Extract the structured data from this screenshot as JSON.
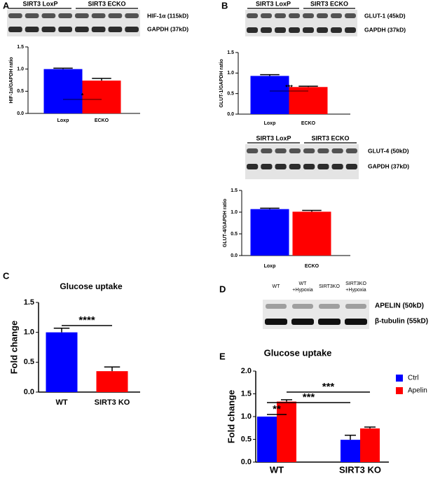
{
  "chart_data": [
    {
      "type": "bar",
      "panel": "A",
      "ylabel": "HIF-1α/GAPDH ratio",
      "categories": [
        "Loxp",
        "ECKO"
      ],
      "values": [
        1.0,
        0.74
      ],
      "errors": [
        0.02,
        0.05
      ],
      "colors": [
        "#0000ff",
        "#ff0000"
      ],
      "ylim": [
        0,
        1.5
      ],
      "yticks": [
        {
          "value": 0,
          "label": "0.0"
        },
        0.5,
        {
          "value": 1,
          "label": "1.0"
        },
        1.5
      ],
      "annotations": [
        "*"
      ],
      "blot": {
        "groups": [
          "SIRT3 LoxP",
          "SIRT3 ECKO"
        ],
        "bands": [
          "HIF-1α (115kD)",
          "GAPDH (37kD)"
        ]
      }
    },
    {
      "type": "bar",
      "panel": "B",
      "ylabel": "GLUT-1/GAPDH ratio",
      "categories": [
        "Loxp",
        "ECKO"
      ],
      "values": [
        0.93,
        0.66
      ],
      "errors": [
        0.03,
        0.02
      ],
      "colors": [
        "#0000ff",
        "#ff0000"
      ],
      "ylim": [
        0,
        1.5
      ],
      "yticks": [
        {
          "value": 0,
          "label": "0.0"
        },
        0.5,
        {
          "value": 1,
          "label": "1.0"
        },
        1.5
      ],
      "annotations": [
        "***"
      ],
      "blot": {
        "groups": [
          "SIRT3 LoxP",
          "SIRT3 ECKO"
        ],
        "bands": [
          "GLUT-1 (45kD)",
          "GAPDH (37kD)"
        ]
      }
    },
    {
      "type": "bar",
      "ylabel": "GLUT-4/GAPDH ratio",
      "categories": [
        "Loxp",
        "ECKO"
      ],
      "values": [
        1.07,
        1.01
      ],
      "errors": [
        0.02,
        0.03
      ],
      "colors": [
        "#0000ff",
        "#ff0000"
      ],
      "ylim": [
        0,
        1.5
      ],
      "yticks": [
        {
          "value": 0,
          "label": "0.0"
        },
        0.5,
        {
          "value": 1,
          "label": "1.0"
        },
        1.5
      ],
      "annotations": [],
      "blot": {
        "groups": [
          "SIRT3 LoxP",
          "SIRT3 ECKO"
        ],
        "bands": [
          "GLUT-4 (50kD)",
          "GAPDH (37kD)"
        ]
      }
    },
    {
      "type": "bar",
      "panel": "C",
      "title": "Glucose uptake",
      "ylabel": "Fold change",
      "categories": [
        "WT",
        "SIRT3 KO"
      ],
      "values": [
        1.0,
        0.35
      ],
      "errors": [
        0.07,
        0.07
      ],
      "colors": [
        "#0000ff",
        "#ff0000"
      ],
      "ylim": [
        0,
        1.5
      ],
      "yticks": [
        {
          "value": 0,
          "label": "0.0"
        },
        0.5,
        {
          "value": 1,
          "label": "1.0"
        },
        1.5
      ],
      "annotations": [
        "****"
      ]
    },
    {
      "type": "grouped_bar",
      "panel": "E",
      "title": "Glucose uptake",
      "ylabel": "Fold change",
      "categories": [
        "WT",
        "SIRT3 KO"
      ],
      "series": [
        {
          "name": "Ctrl",
          "color": "#0000ff",
          "values": [
            1.0,
            0.49
          ],
          "errors": [
            0,
            0.1
          ]
        },
        {
          "name": "Apelin",
          "color": "#ff0000",
          "values": [
            1.33,
            0.74
          ],
          "errors": [
            0.04,
            0.03
          ]
        }
      ],
      "ylim": [
        0,
        2
      ],
      "yticks": [
        {
          "value": 0,
          "label": "0.0"
        },
        0.5,
        {
          "value": 1,
          "label": "1.0"
        },
        1.5,
        {
          "value": 2,
          "label": "2.0"
        }
      ],
      "annotations": [
        "**",
        "***",
        "***"
      ],
      "legend": "right"
    }
  ],
  "panel_d": {
    "panel": "D",
    "lanes": [
      [
        "WT"
      ],
      [
        "WT",
        "+Hypoxia"
      ],
      [
        "SIRT3KO"
      ],
      [
        "SIRT3KO",
        "+Hypoxia"
      ]
    ],
    "bands": [
      "APELIN (50kD)",
      "β-tubulin (55kD)"
    ]
  }
}
